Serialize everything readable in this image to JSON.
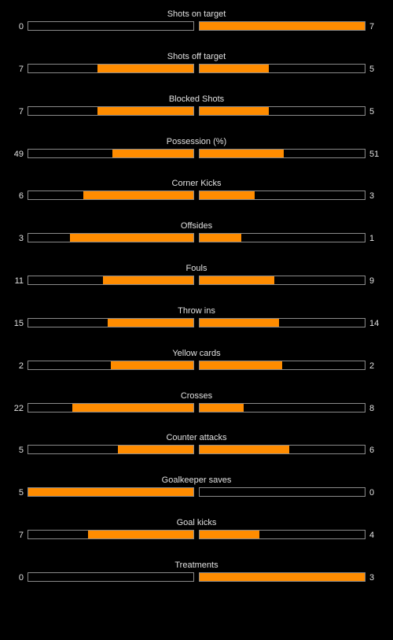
{
  "colors": {
    "background": "#000000",
    "bar_fill": "#ff8c00",
    "bar_border": "#8a8a8a",
    "text": "#e0e0e0"
  },
  "stats": [
    {
      "title": "Shots on target",
      "home": "0",
      "away": "7",
      "home_fill": 0.0,
      "away_fill": 1.0
    },
    {
      "title": "Shots off target",
      "home": "7",
      "away": "5",
      "home_fill": 0.583,
      "away_fill": 0.417
    },
    {
      "title": "Blocked Shots",
      "home": "7",
      "away": "5",
      "home_fill": 0.583,
      "away_fill": 0.417
    },
    {
      "title": "Possession (%)",
      "home": "49",
      "away": "51",
      "home_fill": 0.49,
      "away_fill": 0.51
    },
    {
      "title": "Corner Kicks",
      "home": "6",
      "away": "3",
      "home_fill": 0.667,
      "away_fill": 0.333
    },
    {
      "title": "Offsides",
      "home": "3",
      "away": "1",
      "home_fill": 0.75,
      "away_fill": 0.25
    },
    {
      "title": "Fouls",
      "home": "11",
      "away": "9",
      "home_fill": 0.55,
      "away_fill": 0.45
    },
    {
      "title": "Throw ins",
      "home": "15",
      "away": "14",
      "home_fill": 0.517,
      "away_fill": 0.483
    },
    {
      "title": "Yellow cards",
      "home": "2",
      "away": "2",
      "home_fill": 0.5,
      "away_fill": 0.5
    },
    {
      "title": "Crosses",
      "home": "22",
      "away": "8",
      "home_fill": 0.733,
      "away_fill": 0.267
    },
    {
      "title": "Counter attacks",
      "home": "5",
      "away": "6",
      "home_fill": 0.455,
      "away_fill": 0.545
    },
    {
      "title": "Goalkeeper saves",
      "home": "5",
      "away": "0",
      "home_fill": 1.0,
      "away_fill": 0.0
    },
    {
      "title": "Goal kicks",
      "home": "7",
      "away": "4",
      "home_fill": 0.636,
      "away_fill": 0.364
    },
    {
      "title": "Treatments",
      "home": "0",
      "away": "3",
      "home_fill": 0.0,
      "away_fill": 1.0
    }
  ]
}
